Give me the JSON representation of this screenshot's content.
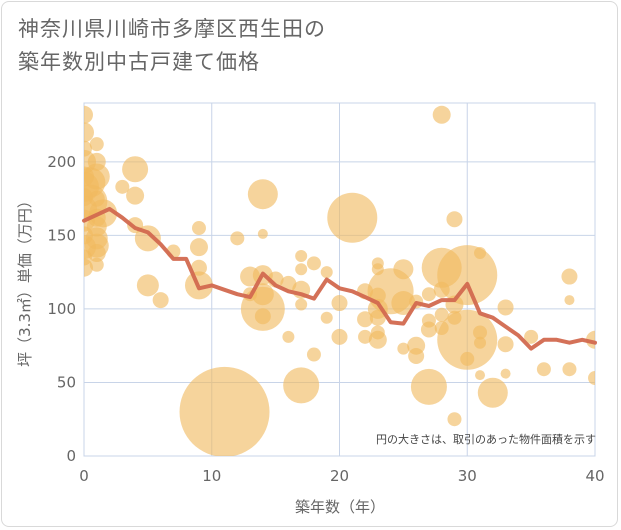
{
  "title": "神奈川県川崎市多摩区西生田の\n築年数別中古戸建て価格",
  "chart_data": {
    "type": "scatter",
    "xlabel": "築年数（年）",
    "ylabel": "坪（3.3㎡）単価（万円）",
    "xlim": [
      0,
      40
    ],
    "ylim": [
      0,
      240
    ],
    "xticks": [
      0,
      10,
      20,
      30,
      40
    ],
    "yticks": [
      0,
      50,
      100,
      150,
      200
    ],
    "note": "円の大きさは、取引のあった物件面積を示す",
    "colors": {
      "bubble": "#f0b95f",
      "line": "#d2694f",
      "grid": "#c8d4e8",
      "plot_bg": "#ffffff"
    },
    "bubbles": [
      {
        "x": 0,
        "y": 232,
        "s": 9
      },
      {
        "x": 0,
        "y": 220,
        "s": 10
      },
      {
        "x": 0,
        "y": 209,
        "s": 8
      },
      {
        "x": 0,
        "y": 200,
        "s": 12
      },
      {
        "x": 0,
        "y": 190,
        "s": 10
      },
      {
        "x": 0,
        "y": 183,
        "s": 15
      },
      {
        "x": 0,
        "y": 176,
        "s": 9
      },
      {
        "x": 0,
        "y": 168,
        "s": 13
      },
      {
        "x": 0,
        "y": 160,
        "s": 11
      },
      {
        "x": 0,
        "y": 150,
        "s": 9
      },
      {
        "x": 0,
        "y": 142,
        "s": 12
      },
      {
        "x": 0,
        "y": 135,
        "s": 8
      },
      {
        "x": 0,
        "y": 128,
        "s": 9
      },
      {
        "x": 0.5,
        "y": 186,
        "s": 15
      },
      {
        "x": 0.5,
        "y": 173,
        "s": 17
      },
      {
        "x": 1,
        "y": 212,
        "s": 7
      },
      {
        "x": 1,
        "y": 200,
        "s": 9
      },
      {
        "x": 1,
        "y": 190,
        "s": 13
      },
      {
        "x": 1,
        "y": 175,
        "s": 8
      },
      {
        "x": 1,
        "y": 162,
        "s": 9
      },
      {
        "x": 1,
        "y": 156,
        "s": 10
      },
      {
        "x": 1,
        "y": 148,
        "s": 11
      },
      {
        "x": 1,
        "y": 143,
        "s": 12
      },
      {
        "x": 1,
        "y": 138,
        "s": 9
      },
      {
        "x": 1,
        "y": 130,
        "s": 7
      },
      {
        "x": 1.5,
        "y": 165,
        "s": 14
      },
      {
        "x": 3,
        "y": 183,
        "s": 7
      },
      {
        "x": 4,
        "y": 195,
        "s": 13
      },
      {
        "x": 4,
        "y": 177,
        "s": 9
      },
      {
        "x": 4,
        "y": 157,
        "s": 8
      },
      {
        "x": 5,
        "y": 148,
        "s": 13
      },
      {
        "x": 5,
        "y": 116,
        "s": 11
      },
      {
        "x": 6,
        "y": 106,
        "s": 8
      },
      {
        "x": 7,
        "y": 139,
        "s": 7
      },
      {
        "x": 9,
        "y": 155,
        "s": 7
      },
      {
        "x": 9,
        "y": 142,
        "s": 9
      },
      {
        "x": 9,
        "y": 128,
        "s": 8
      },
      {
        "x": 9,
        "y": 116,
        "s": 14
      },
      {
        "x": 11,
        "y": 30,
        "s": 45
      },
      {
        "x": 12,
        "y": 148,
        "s": 7
      },
      {
        "x": 13,
        "y": 122,
        "s": 10
      },
      {
        "x": 13,
        "y": 110,
        "s": 7
      },
      {
        "x": 14,
        "y": 178,
        "s": 15
      },
      {
        "x": 14,
        "y": 151,
        "s": 5
      },
      {
        "x": 14,
        "y": 123,
        "s": 10
      },
      {
        "x": 14,
        "y": 110,
        "s": 11
      },
      {
        "x": 14,
        "y": 100,
        "s": 22
      },
      {
        "x": 14,
        "y": 95,
        "s": 8
      },
      {
        "x": 15,
        "y": 120,
        "s": 8
      },
      {
        "x": 16,
        "y": 117,
        "s": 8
      },
      {
        "x": 16,
        "y": 81,
        "s": 6
      },
      {
        "x": 17,
        "y": 136,
        "s": 6
      },
      {
        "x": 17,
        "y": 127,
        "s": 6
      },
      {
        "x": 17,
        "y": 113,
        "s": 9
      },
      {
        "x": 17,
        "y": 103,
        "s": 6
      },
      {
        "x": 17,
        "y": 48,
        "s": 18
      },
      {
        "x": 18,
        "y": 131,
        "s": 7
      },
      {
        "x": 18,
        "y": 69,
        "s": 7
      },
      {
        "x": 19,
        "y": 125,
        "s": 6
      },
      {
        "x": 19,
        "y": 94,
        "s": 6
      },
      {
        "x": 20,
        "y": 104,
        "s": 8
      },
      {
        "x": 20,
        "y": 81,
        "s": 8
      },
      {
        "x": 21,
        "y": 162,
        "s": 25
      },
      {
        "x": 22,
        "y": 112,
        "s": 8
      },
      {
        "x": 22,
        "y": 93,
        "s": 8
      },
      {
        "x": 22,
        "y": 81,
        "s": 7
      },
      {
        "x": 23,
        "y": 131,
        "s": 6
      },
      {
        "x": 23,
        "y": 127,
        "s": 6
      },
      {
        "x": 23,
        "y": 109,
        "s": 8
      },
      {
        "x": 23,
        "y": 100,
        "s": 10
      },
      {
        "x": 23,
        "y": 94,
        "s": 8
      },
      {
        "x": 23,
        "y": 84,
        "s": 7
      },
      {
        "x": 23,
        "y": 79,
        "s": 9
      },
      {
        "x": 24,
        "y": 112,
        "s": 23
      },
      {
        "x": 25,
        "y": 127,
        "s": 10
      },
      {
        "x": 25,
        "y": 104,
        "s": 12
      },
      {
        "x": 25,
        "y": 73,
        "s": 6
      },
      {
        "x": 26,
        "y": 105,
        "s": 7
      },
      {
        "x": 26,
        "y": 75,
        "s": 9
      },
      {
        "x": 26,
        "y": 68,
        "s": 8
      },
      {
        "x": 27,
        "y": 110,
        "s": 7
      },
      {
        "x": 27,
        "y": 92,
        "s": 7
      },
      {
        "x": 27,
        "y": 86,
        "s": 8
      },
      {
        "x": 27,
        "y": 47,
        "s": 18
      },
      {
        "x": 28,
        "y": 232,
        "s": 9
      },
      {
        "x": 28,
        "y": 128,
        "s": 20
      },
      {
        "x": 28,
        "y": 113,
        "s": 8
      },
      {
        "x": 28,
        "y": 96,
        "s": 7
      },
      {
        "x": 28,
        "y": 87,
        "s": 7
      },
      {
        "x": 29,
        "y": 161,
        "s": 8
      },
      {
        "x": 29,
        "y": 103,
        "s": 9
      },
      {
        "x": 29,
        "y": 94,
        "s": 7
      },
      {
        "x": 29,
        "y": 25,
        "s": 7
      },
      {
        "x": 30,
        "y": 123,
        "s": 30
      },
      {
        "x": 30,
        "y": 79,
        "s": 30
      },
      {
        "x": 30,
        "y": 66,
        "s": 7
      },
      {
        "x": 31,
        "y": 138,
        "s": 6
      },
      {
        "x": 31,
        "y": 84,
        "s": 7
      },
      {
        "x": 31,
        "y": 77,
        "s": 6
      },
      {
        "x": 31,
        "y": 55,
        "s": 5
      },
      {
        "x": 32,
        "y": 43,
        "s": 15
      },
      {
        "x": 33,
        "y": 101,
        "s": 8
      },
      {
        "x": 33,
        "y": 76,
        "s": 8
      },
      {
        "x": 33,
        "y": 56,
        "s": 5
      },
      {
        "x": 35,
        "y": 81,
        "s": 7
      },
      {
        "x": 36,
        "y": 59,
        "s": 7
      },
      {
        "x": 38,
        "y": 122,
        "s": 8
      },
      {
        "x": 38,
        "y": 106,
        "s": 5
      },
      {
        "x": 38,
        "y": 59,
        "s": 7
      },
      {
        "x": 40,
        "y": 79,
        "s": 9
      },
      {
        "x": 40,
        "y": 53,
        "s": 7
      }
    ],
    "series": [
      {
        "x": [
          0,
          1,
          2,
          3,
          4,
          5,
          6,
          7,
          8,
          9,
          10,
          11,
          12,
          13,
          14,
          15,
          16,
          17,
          18,
          19,
          20,
          21,
          22,
          23,
          24,
          25,
          26,
          27,
          28,
          29,
          30,
          31,
          32,
          33,
          34,
          35,
          36,
          37,
          38,
          39,
          40
        ],
        "values": [
          160,
          164,
          168,
          162,
          155,
          152,
          144,
          134,
          134,
          114,
          116,
          113,
          110,
          108,
          124,
          116,
          112,
          110,
          107,
          120,
          114,
          112,
          108,
          104,
          91,
          90,
          104,
          102,
          106,
          106,
          117,
          97,
          94,
          88,
          82,
          73,
          79,
          79,
          77,
          79,
          77
        ]
      }
    ]
  }
}
